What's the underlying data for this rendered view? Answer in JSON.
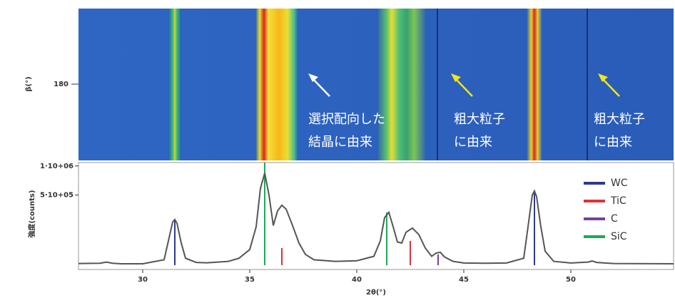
{
  "chart_data": {
    "type": "line",
    "xlabel": "2θ(°)",
    "ylabel": "強度(counts)",
    "xlim": [
      27,
      54.8
    ],
    "xticks": [
      30,
      35,
      40,
      45,
      50
    ],
    "ylim": [
      0,
      1070000
    ],
    "yscale": "sqrt",
    "yticks": [
      {
        "value": 1000000,
        "label": "1·10+06"
      },
      {
        "value": 500000,
        "label": "5·10+05"
      }
    ],
    "legend": "upper right",
    "line": {
      "color": "#555555",
      "x": [
        27,
        28,
        28.3,
        28.6,
        29,
        30,
        31,
        31.2,
        31.4,
        31.5,
        31.6,
        31.8,
        32,
        32.5,
        33,
        34,
        34.5,
        35,
        35.3,
        35.5,
        35.7,
        35.9,
        36.1,
        36.3,
        36.5,
        36.7,
        37,
        37.3,
        37.6,
        38,
        39,
        40,
        40.8,
        41.1,
        41.3,
        41.5,
        41.7,
        41.9,
        42.1,
        42.3,
        42.6,
        42.9,
        43.2,
        43.5,
        43.7,
        43.9,
        44.1,
        44.5,
        45,
        46,
        47,
        47.8,
        48.0,
        48.2,
        48.3,
        48.4,
        48.6,
        48.8,
        49.2,
        50,
        50.8,
        51,
        51.2,
        52,
        54.8
      ],
      "values": [
        300,
        400,
        1000,
        400,
        200,
        200,
        3000,
        60000,
        190000,
        212000,
        180000,
        50000,
        5000,
        800,
        600,
        1500,
        5000,
        25000,
        150000,
        600000,
        861000,
        500000,
        160000,
        300000,
        365000,
        320000,
        160000,
        50000,
        12000,
        3000,
        1500,
        2000,
        8000,
        60000,
        230000,
        283000,
        150000,
        55000,
        50000,
        110000,
        140000,
        95000,
        30000,
        8000,
        15000,
        17000,
        7000,
        1500,
        500,
        400,
        500,
        5000,
        150000,
        500000,
        560000,
        480000,
        150000,
        20000,
        1500,
        500,
        1000,
        1800,
        800,
        300,
        200
      ]
    },
    "series": [
      {
        "name": "WC",
        "color": "#2b3a93",
        "x": [
          31.5,
          35.7,
          48.3
        ],
        "values": [
          212000,
          861000,
          560000
        ]
      },
      {
        "name": "TiC",
        "color": "#e0303a",
        "x": [
          36.5,
          42.5
        ],
        "values": [
          30000,
          60000
        ]
      },
      {
        "name": "C",
        "color": "#7a3fa0",
        "x": [
          43.8
        ],
        "values": [
          12000
        ]
      },
      {
        "name": "SiC",
        "color": "#1faa55",
        "x": [
          35.7,
          41.4
        ],
        "values": [
          1070000,
          283000
        ]
      }
    ],
    "image": {
      "ylabel": "β(°)",
      "yticks": [
        180
      ]
    },
    "annotations": [
      {
        "lines": [
          "選択配向した",
          "結晶に由来"
        ]
      },
      {
        "lines": [
          "粗大粒子",
          "に由来"
        ]
      },
      {
        "lines": [
          "粗大粒子",
          "に由来"
        ]
      }
    ]
  }
}
